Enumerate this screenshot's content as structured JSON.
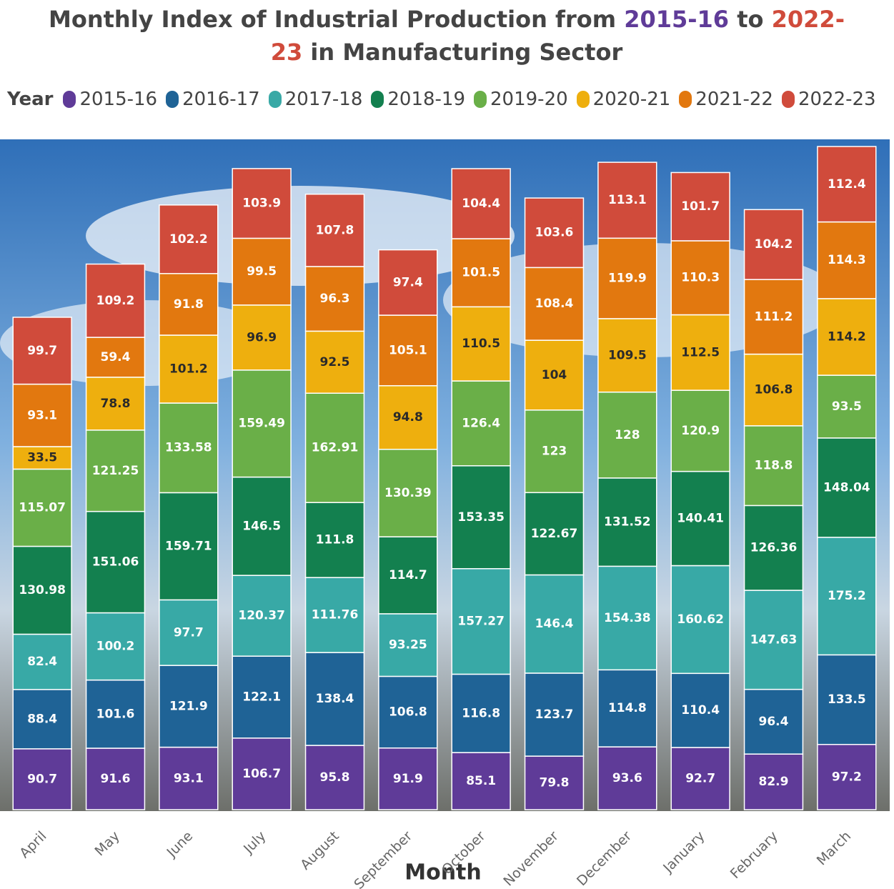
{
  "chart_data": {
    "type": "stacked_bar",
    "title": "Monthly Index of Industrial Production from 2015-16 to 2022-23 in Manufacturing Sector",
    "legend_title": "Year",
    "x_label": "Month",
    "categories": [
      "April",
      "May",
      "June",
      "July",
      "August",
      "September",
      "October",
      "November",
      "December",
      "January",
      "February",
      "March"
    ],
    "series": [
      {
        "name": "2015-16",
        "color": "#5f3b98",
        "values": [
          90.7,
          91.6,
          93.1,
          106.7,
          95.8,
          91.9,
          85.1,
          79.8,
          93.6,
          92.7,
          82.9,
          97.2
        ]
      },
      {
        "name": "2016-17",
        "color": "#1f6396",
        "values": [
          88.4,
          101.6,
          121.9,
          122.1,
          138.4,
          106.8,
          116.8,
          123.7,
          114.8,
          110.4,
          96.4,
          133.5
        ]
      },
      {
        "name": "2017-18",
        "color": "#38a9a6",
        "values": [
          82.4,
          100.2,
          97.7,
          120.37,
          111.76,
          93.25,
          157.27,
          146.4,
          154.38,
          160.62,
          147.63,
          175.2
        ]
      },
      {
        "name": "2018-19",
        "color": "#13804f",
        "values": [
          130.98,
          151.06,
          159.71,
          146.5,
          111.8,
          114.7,
          153.35,
          122.67,
          131.52,
          140.41,
          126.36,
          148.04
        ]
      },
      {
        "name": "2019-20",
        "color": "#6aaf48",
        "values": [
          115.07,
          121.25,
          133.58,
          159.49,
          162.91,
          130.39,
          126.4,
          123,
          128,
          120.9,
          118.8,
          93.5
        ]
      },
      {
        "name": "2020-21",
        "color": "#eeaf0e",
        "values": [
          33.5,
          78.8,
          101.2,
          96.9,
          92.5,
          94.8,
          110.5,
          104,
          109.5,
          112.5,
          106.8,
          114.2
        ]
      },
      {
        "name": "2021-22",
        "color": "#e2780f",
        "values": [
          93.1,
          59.4,
          91.8,
          99.5,
          96.3,
          105.1,
          101.5,
          108.4,
          119.9,
          110.3,
          111.2,
          114.3
        ]
      },
      {
        "name": "2022-23",
        "color": "#d04b3b",
        "values": [
          99.7,
          109.2,
          102.2,
          103.9,
          107.8,
          97.4,
          104.4,
          103.6,
          113.1,
          101.7,
          104.2,
          112.4
        ]
      }
    ]
  }
}
